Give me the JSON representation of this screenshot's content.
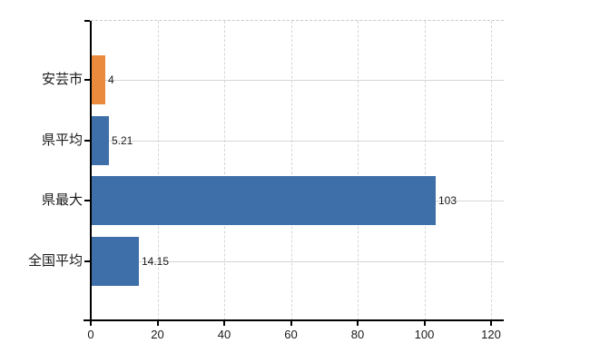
{
  "chart_data": {
    "type": "bar",
    "orientation": "horizontal",
    "title": "",
    "categories": [
      "安芸市",
      "県平均",
      "県最大",
      "全国平均"
    ],
    "values": [
      4,
      5.21,
      103,
      14.15
    ],
    "value_labels": [
      "4",
      "5.21",
      "103",
      "14.15"
    ],
    "bar_colors": [
      "#E98A3C",
      "#3E6FA9",
      "#3E6FA9",
      "#3E6FA9"
    ],
    "x_ticks": [
      0,
      20,
      40,
      60,
      80,
      100,
      120
    ],
    "x_tick_labels": [
      "0",
      "20",
      "40",
      "60",
      "80",
      "100",
      "120"
    ],
    "xlim": [
      0,
      123.8
    ],
    "grid": true,
    "legend": false,
    "colors": {
      "highlight_bar": "#E98A3C",
      "default_bar": "#3E6FA9",
      "axis": "#000000",
      "grid": "#D6D6D6",
      "text": "#1A1A1A",
      "background": "#FFFFFF"
    }
  }
}
